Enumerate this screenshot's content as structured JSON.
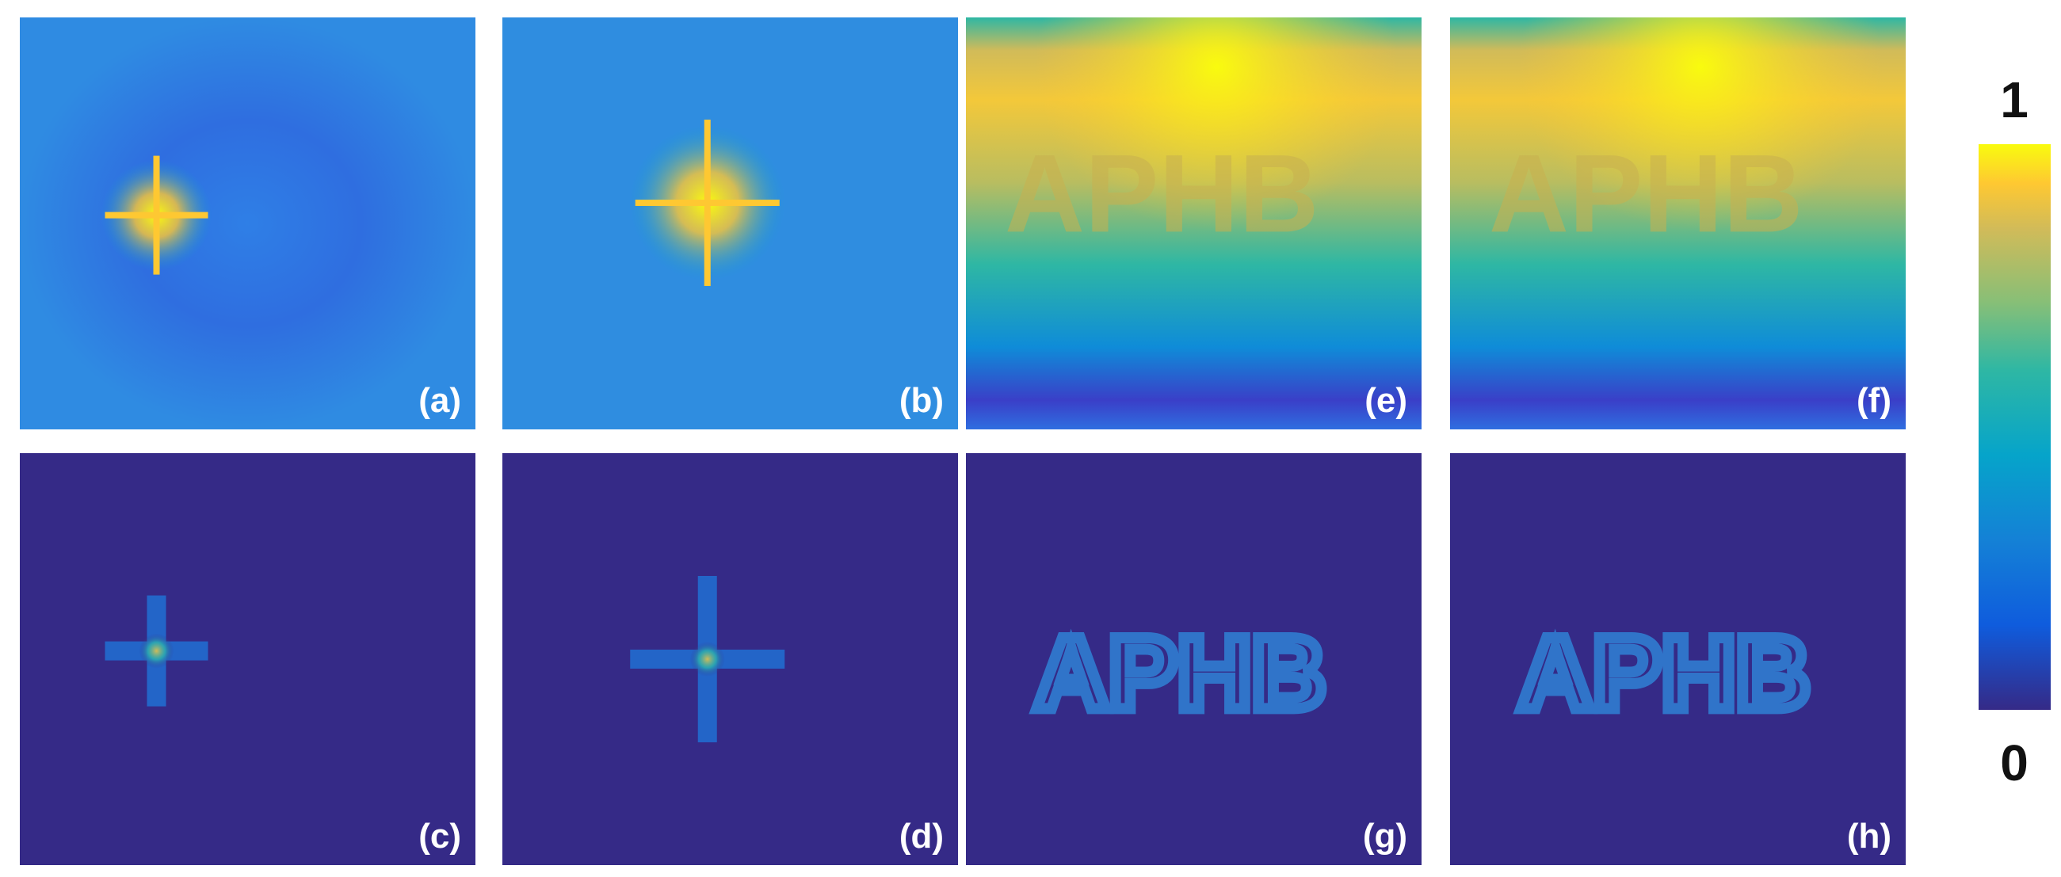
{
  "panels": [
    {
      "label": "(a)"
    },
    {
      "label": "(b)"
    },
    {
      "label": "(e)",
      "text": "APHB"
    },
    {
      "label": "(f)",
      "text": "APHB"
    },
    {
      "label": "(c)"
    },
    {
      "label": "(d)"
    },
    {
      "label": "(g)",
      "text": "APHB"
    },
    {
      "label": "(h)",
      "text": "APHB"
    }
  ],
  "colorbar": {
    "range": [
      0,
      1
    ]
  }
}
